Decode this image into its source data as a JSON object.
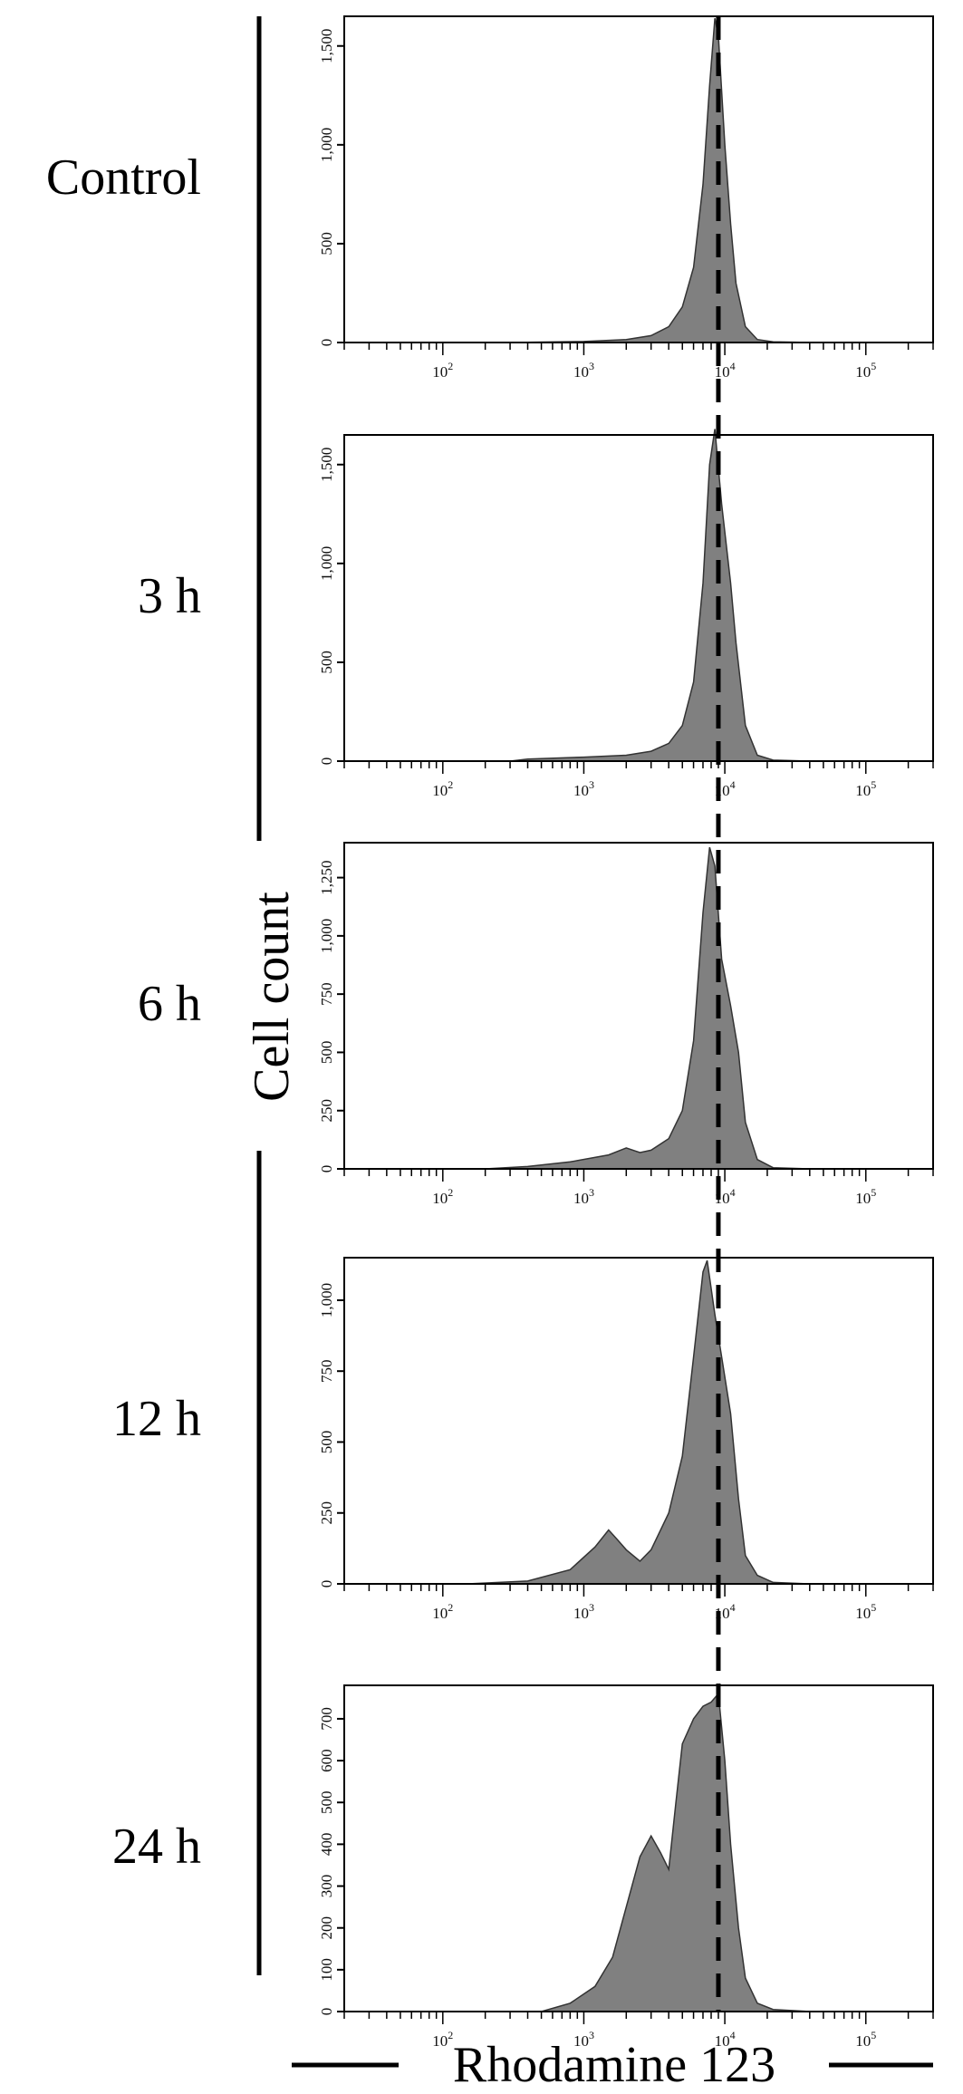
{
  "figure": {
    "y_axis_label": "Cell count",
    "x_axis_label": "Rhodamine 123"
  },
  "chart_data": {
    "type": "area",
    "fill_color": "#808080",
    "reference_line": {
      "x": 9000,
      "style": "dashed"
    },
    "x_scale": "log",
    "xlim": [
      20,
      300000
    ],
    "x_tick_labels": [
      "10^2",
      "10^3",
      "10^4",
      "10^5"
    ],
    "panels": [
      {
        "label": "Control",
        "ylim": [
          0,
          1650
        ],
        "y_ticks": [
          0,
          500,
          1000,
          1500
        ],
        "y_tick_labels": [
          "0",
          "500",
          "1,000",
          "1,500"
        ],
        "x": [
          300,
          1000,
          2000,
          3000,
          4000,
          5000,
          6000,
          7000,
          7800,
          8500,
          9000,
          10000,
          11000,
          12000,
          14000,
          17000,
          22000,
          40000
        ],
        "y": [
          0,
          5,
          15,
          35,
          80,
          180,
          380,
          800,
          1300,
          1640,
          1550,
          1000,
          600,
          300,
          80,
          15,
          3,
          0
        ]
      },
      {
        "label": "3 h",
        "ylim": [
          0,
          1650
        ],
        "y_ticks": [
          0,
          500,
          1000,
          1500
        ],
        "y_tick_labels": [
          "0",
          "500",
          "1,000",
          "1,500"
        ],
        "x": [
          300,
          400,
          1000,
          2000,
          3000,
          4000,
          5000,
          6000,
          7000,
          7800,
          8500,
          9500,
          11000,
          12000,
          14000,
          17000,
          22000,
          40000
        ],
        "y": [
          0,
          10,
          20,
          30,
          50,
          90,
          180,
          400,
          900,
          1500,
          1680,
          1300,
          900,
          600,
          180,
          30,
          5,
          0
        ]
      },
      {
        "label": "6 h",
        "ylim": [
          0,
          1400
        ],
        "y_ticks": [
          0,
          250,
          500,
          750,
          1000,
          1250
        ],
        "y_tick_labels": [
          "0",
          "250",
          "500",
          "750",
          "1,000",
          "1,250"
        ],
        "x": [
          200,
          400,
          800,
          1500,
          2000,
          2500,
          3000,
          4000,
          5000,
          6000,
          7000,
          7800,
          8500,
          9500,
          11000,
          12500,
          14000,
          17000,
          22000,
          40000
        ],
        "y": [
          0,
          10,
          30,
          60,
          90,
          70,
          80,
          130,
          250,
          550,
          1100,
          1380,
          1300,
          900,
          700,
          500,
          200,
          40,
          5,
          0
        ]
      },
      {
        "label": "12 h",
        "ylim": [
          0,
          1150
        ],
        "y_ticks": [
          0,
          250,
          500,
          750,
          1000
        ],
        "y_tick_labels": [
          "0",
          "250",
          "500",
          "750",
          "1,000"
        ],
        "x": [
          150,
          400,
          800,
          1200,
          1500,
          1700,
          2000,
          2500,
          3000,
          4000,
          5000,
          6000,
          7000,
          7500,
          8500,
          9500,
          11000,
          12500,
          14000,
          17000,
          22000,
          40000
        ],
        "y": [
          0,
          10,
          50,
          130,
          190,
          160,
          120,
          80,
          120,
          250,
          450,
          800,
          1100,
          1140,
          950,
          800,
          600,
          300,
          100,
          30,
          5,
          0
        ]
      },
      {
        "label": "24 h",
        "ylim": [
          0,
          780
        ],
        "y_ticks": [
          0,
          100,
          200,
          300,
          400,
          500,
          600,
          700
        ],
        "y_tick_labels": [
          "0",
          "100",
          "200",
          "300",
          "400",
          "500",
          "600",
          "700"
        ],
        "x": [
          500,
          800,
          1200,
          1600,
          2000,
          2500,
          3000,
          3500,
          4000,
          4500,
          5000,
          6000,
          7000,
          8000,
          9000,
          10000,
          11000,
          12500,
          14000,
          17000,
          22000,
          40000
        ],
        "y": [
          0,
          20,
          60,
          130,
          250,
          370,
          420,
          380,
          340,
          500,
          640,
          700,
          730,
          740,
          760,
          600,
          400,
          200,
          80,
          20,
          5,
          0
        ]
      }
    ]
  }
}
